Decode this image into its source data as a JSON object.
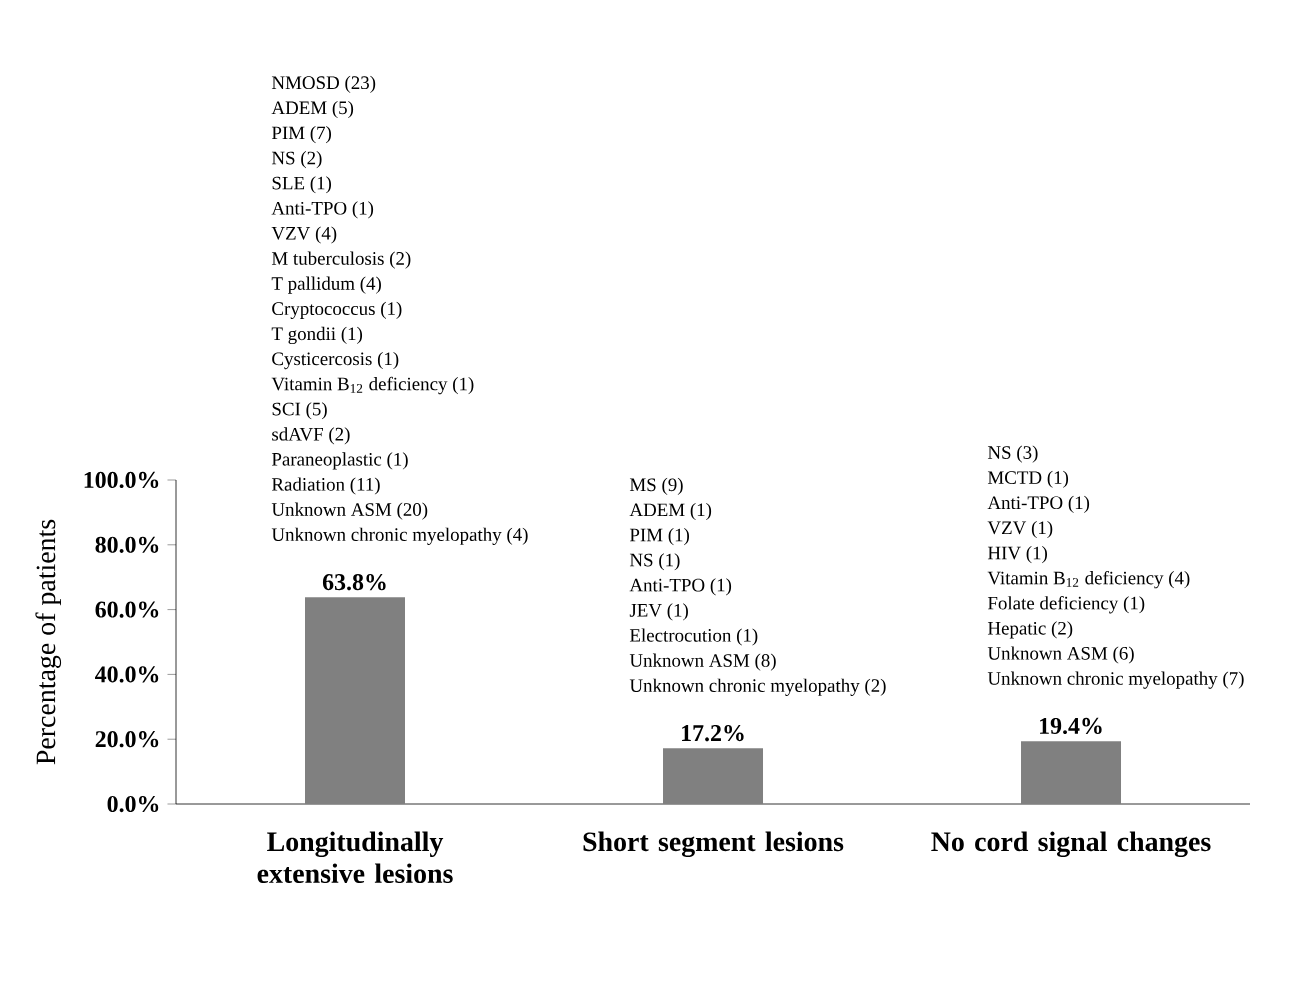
{
  "chart_data": {
    "type": "bar",
    "ylabel": "Percentage of patients",
    "categories": [
      "Longitudinally extensive lesions",
      "Short segment lesions",
      "No cord signal changes"
    ],
    "values": [
      63.8,
      17.2,
      19.4
    ],
    "value_labels": [
      "63.8%",
      "17.2%",
      "19.4%"
    ],
    "color": "#808080",
    "ylim": [
      0,
      100
    ],
    "yticks": [
      {
        "value": 0,
        "label": "0.0%"
      },
      {
        "value": 20,
        "label": "20.0%"
      },
      {
        "value": 40,
        "label": "40.0%"
      },
      {
        "value": 60,
        "label": "60.0%"
      },
      {
        "value": 80,
        "label": "80.0%"
      },
      {
        "value": 100,
        "label": "100.0%"
      }
    ],
    "annotations": [
      "NMOSD (23)",
      "ADEM (5)",
      "PIM (7)",
      "NS (2)",
      "SLE (1)",
      "Anti-TPO (1)",
      "VZV (4)",
      "M tuberculosis (2)",
      "T pallidum (4)",
      "Cryptococcus (1)",
      "T gondii (1)",
      "Cysticercosis (1)",
      "Vitamin B$_{12}$ deficiency (1)",
      "SCI (5)",
      "sdAVF (2)",
      "Paraneoplastic (1)",
      "Radiation (11)",
      "Unknown ASM (20)",
      "Unknown chronic myelopathy (4)",
      "MS (9)",
      "ADEM (1)",
      "PIM (1)",
      "NS (1)",
      "Anti-TPO (1)",
      "JEV (1)",
      "Electrocution (1)",
      "Unknown ASM (8)",
      "Unknown chronic myelopathy (2)",
      "NS (3)",
      "MCTD (1)",
      "Anti-TPO (1)",
      "VZV (1)",
      "HIV (1)",
      "Vitamin B$_{12}$ deficiency (4)",
      "Folate deficiency (1)",
      "Hepatic (2)",
      "Unknown ASM (6)",
      "Unknown chronic myelopathy (7)"
    ]
  }
}
